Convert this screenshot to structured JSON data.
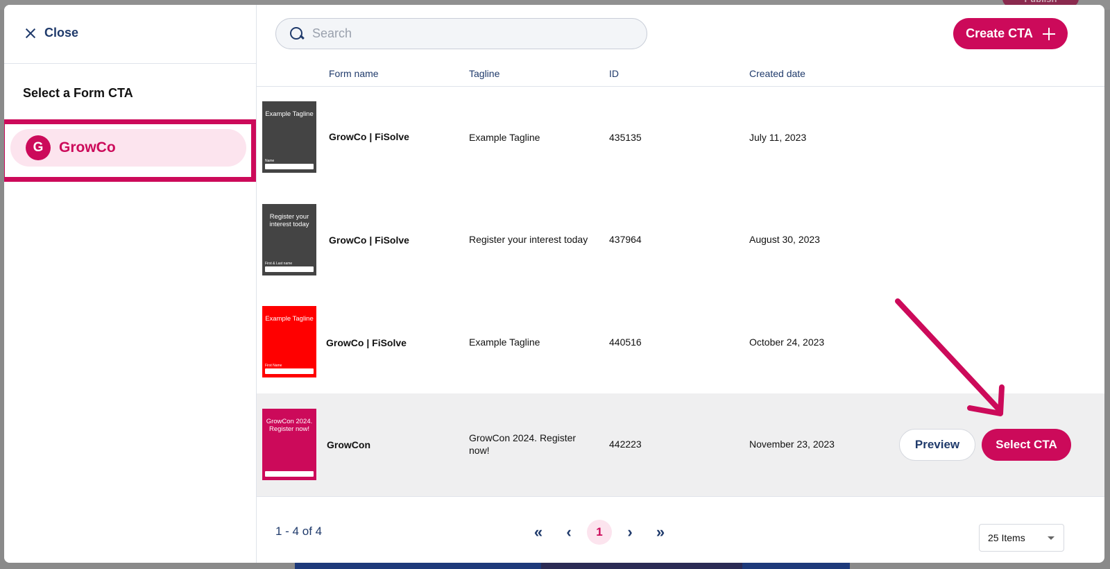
{
  "colors": {
    "accent": "#cc0a5a",
    "accent_light": "#fce4ee",
    "navy": "#1f3a6b",
    "row_highlight": "#efeff0"
  },
  "background_app": {
    "publish_label": "Publish"
  },
  "sidebar": {
    "close_label": "Close",
    "title": "Select a Form CTA",
    "org": {
      "initial": "G",
      "name": "GrowCo"
    }
  },
  "search": {
    "placeholder": "Search",
    "value": ""
  },
  "create_button": {
    "label": "Create CTA"
  },
  "table": {
    "columns": [
      "Form name",
      "Tagline",
      "ID",
      "Created date"
    ],
    "rows": [
      {
        "thumb_text": "Example Tagline",
        "thumb_field_label": "Name",
        "thumb_bg": "#444444",
        "name": "GrowCo | FiSolve",
        "tagline": "Example Tagline",
        "id": "435135",
        "created": "July 11, 2023"
      },
      {
        "thumb_text": "Register your interest today",
        "thumb_field_label": "First & Last name",
        "thumb_bg": "#444444",
        "name": "GrowCo | FiSolve",
        "tagline": "Register your interest today",
        "id": "437964",
        "created": "August 30, 2023"
      },
      {
        "thumb_text": "Example Tagline",
        "thumb_field_label": "First Name",
        "thumb_bg": "#ff0000",
        "name": "GrowCo | FiSolve",
        "tagline": "Example Tagline",
        "id": "440516",
        "created": "October 24, 2023"
      },
      {
        "thumb_text": "GrowCon 2024. Register now!",
        "thumb_field_label": "",
        "thumb_bg": "#cc0a5a",
        "name": "GrowCon",
        "tagline": "GrowCon 2024. Register now!",
        "id": "442223",
        "created": "November 23, 2023"
      }
    ],
    "row_actions": {
      "preview_label": "Preview",
      "select_label": "Select CTA"
    }
  },
  "footer": {
    "count_text": "1 - 4 of 4",
    "current_page": "1",
    "per_page": "25 Items"
  }
}
